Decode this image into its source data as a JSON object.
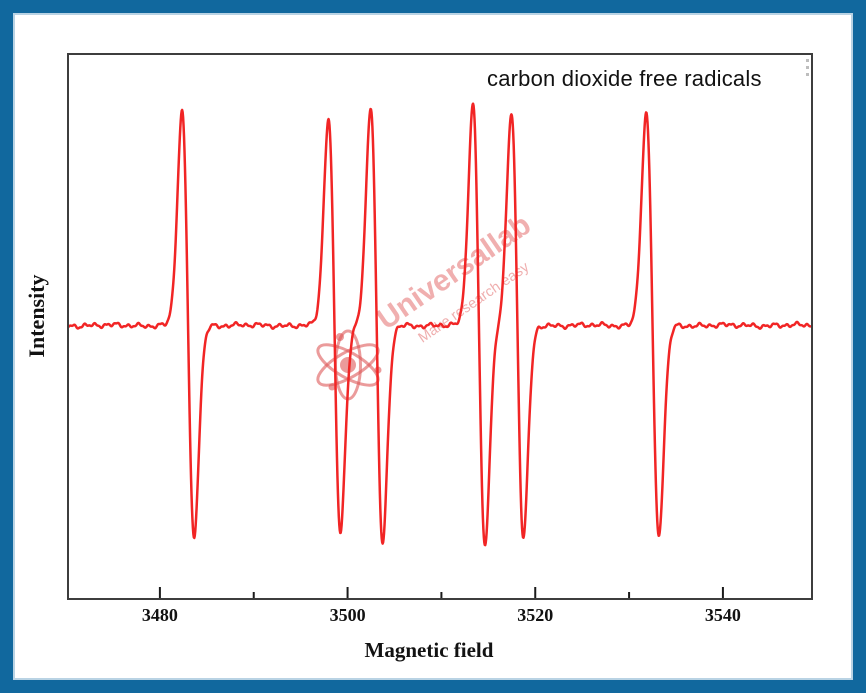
{
  "theme": {
    "frame_color": "#11689e",
    "frame_inner_line": "#b9d3e4",
    "plot_border": "#3d3d3d",
    "curve_color": "#f12525",
    "tick_color": "#1a1a1a",
    "text_color": "#121212",
    "watermark_color": "rgba(226,96,96,0.50)",
    "watermark_sub_color": "rgba(226,108,108,0.55)",
    "atom_color": "rgba(222,88,88,0.60)"
  },
  "watermark": {
    "brand": "Universallab",
    "tagline": "Make research easy"
  },
  "chart_data": {
    "type": "line",
    "title": "carbon dioxide free radicals",
    "xlabel": "Magnetic field",
    "ylabel": "Intensity",
    "xlim": [
      3470.1,
      3549.6
    ],
    "ylim": [
      -1.29,
      1.28
    ],
    "x_ticks_major": [
      3480,
      3500,
      3520,
      3540
    ],
    "x_ticks_minor": [
      3490,
      3510,
      3530
    ],
    "y_ticks": [],
    "grid": false,
    "legend": false,
    "series": [
      {
        "name": "epr-first-derivative-signal",
        "lineshape": "gaussian_derivative",
        "baseline": 0,
        "lines": [
          {
            "center": 3483.0,
            "amplitude": 1.0,
            "pp_width": 1.28
          },
          {
            "center": 3498.6,
            "amplitude": 0.97,
            "pp_width": 1.28
          },
          {
            "center": 3503.1,
            "amplitude": 1.03,
            "pp_width": 1.28
          },
          {
            "center": 3514.0,
            "amplitude": 1.04,
            "pp_width": 1.28
          },
          {
            "center": 3518.1,
            "amplitude": 1.0,
            "pp_width": 1.28
          },
          {
            "center": 3532.5,
            "amplitude": 0.99,
            "pp_width": 1.34
          }
        ]
      }
    ],
    "noise": {
      "scale": 0.012,
      "components": [
        {
          "period": 1.15,
          "amp": 0.55,
          "phase": 0.9
        },
        {
          "period": 0.52,
          "amp": 0.25,
          "phase": 2.3
        },
        {
          "period": 2.6,
          "amp": 0.38,
          "phase": 4.1
        },
        {
          "period": 7.3,
          "amp": 0.22,
          "phase": 1.6
        }
      ]
    }
  }
}
